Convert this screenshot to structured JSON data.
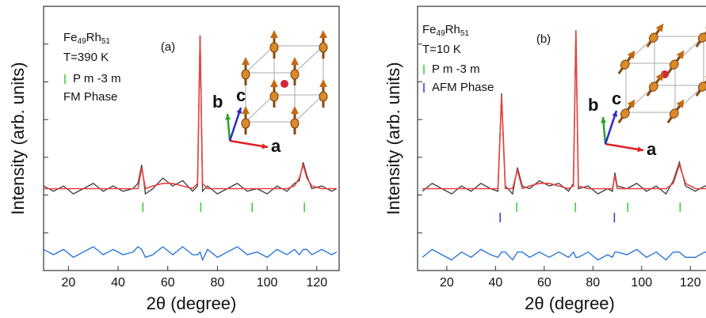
{
  "chart_data": [
    {
      "type": "line",
      "formula": [
        "Fe",
        "49",
        "Rh",
        "51"
      ],
      "temperature": "T=390 K",
      "panel_label": "(a)",
      "phase_note": "FM Phase",
      "axis_letters": [
        "a",
        "b",
        "c"
      ],
      "x_label": "2θ (degree)",
      "y_label": "Intensity (arb. units)",
      "xlim": [
        10,
        129
      ],
      "ylim": [
        0,
        100
      ],
      "xticks": [
        20,
        40,
        60,
        80,
        100,
        120
      ],
      "x": [
        10,
        14,
        18,
        22,
        26,
        30,
        34,
        38,
        42,
        46,
        48,
        49.5,
        51,
        54,
        58,
        62,
        66,
        70,
        72,
        73,
        74,
        76,
        80,
        84,
        88,
        92,
        96,
        100,
        104,
        108,
        111,
        113,
        114.5,
        116,
        118,
        122,
        126,
        128
      ],
      "series": [
        {
          "color": "#3a3a3a",
          "values": [
            32,
            30,
            32,
            29,
            31,
            33,
            30,
            32,
            30,
            31,
            33,
            40,
            29,
            31,
            35,
            32,
            34,
            30,
            32,
            89,
            30,
            32,
            29,
            31,
            33,
            30,
            31,
            29,
            32,
            30,
            33,
            34,
            41,
            36,
            31,
            32,
            30,
            31
          ]
        },
        {
          "color": "#e8413c",
          "values": [
            31,
            31,
            31,
            31,
            31,
            31,
            31,
            31,
            31,
            31,
            31,
            39,
            31,
            32,
            33,
            33,
            32,
            31,
            33,
            89,
            33,
            31,
            31,
            31,
            31,
            31,
            31,
            31,
            31,
            31,
            32,
            35,
            40,
            35,
            32,
            31,
            31,
            31
          ]
        },
        {
          "color": "#1f6fd6",
          "values": [
            8,
            6,
            8,
            5,
            7,
            9,
            6,
            8,
            6,
            7,
            9,
            8,
            5,
            6,
            9,
            6,
            9,
            6,
            6,
            7,
            4,
            8,
            5,
            7,
            9,
            6,
            7,
            5,
            8,
            6,
            8,
            6,
            8,
            8,
            6,
            8,
            6,
            7
          ]
        }
      ],
      "phases": [
        {
          "name": "P m -3 m",
          "color": "#33cc33",
          "positions": [
            50,
            73.3,
            94,
            115
          ]
        }
      ]
    },
    {
      "type": "line",
      "formula": [
        "Fe",
        "49",
        "Rh",
        "51"
      ],
      "temperature": "T=10 K",
      "panel_label": "(b)",
      "axis_letters": [
        "a",
        "b",
        "c"
      ],
      "x_label": "2θ (degree)",
      "y_label": "Intensity (arb. units)",
      "xlim": [
        8,
        130
      ],
      "ylim": [
        0,
        100
      ],
      "xticks": [
        20,
        40,
        60,
        80,
        100,
        120
      ],
      "x": [
        10,
        14,
        18,
        22,
        26,
        30,
        34,
        38,
        41,
        42.5,
        44,
        47,
        49,
        51,
        54,
        58,
        62,
        66,
        70,
        72,
        73,
        74,
        78,
        82,
        86,
        88,
        89,
        90,
        94,
        98,
        102,
        106,
        110,
        113,
        115.5,
        118,
        122,
        126,
        129
      ],
      "series": [
        {
          "color": "#3a3a3a",
          "values": [
            30,
            33,
            31,
            29,
            32,
            30,
            33,
            31,
            30,
            67,
            32,
            29,
            39,
            32,
            31,
            34,
            32,
            33,
            30,
            33,
            90,
            31,
            32,
            29,
            31,
            30,
            37,
            32,
            31,
            33,
            30,
            32,
            29,
            34,
            41,
            32,
            30,
            32,
            31
          ]
        },
        {
          "color": "#e8413c",
          "values": [
            31,
            31,
            31,
            31,
            31,
            31,
            31,
            31,
            31,
            66,
            31,
            31,
            38,
            31,
            32,
            33,
            33,
            32,
            31,
            32,
            91,
            32,
            31,
            31,
            31,
            31,
            36,
            31,
            31,
            31,
            31,
            31,
            31,
            33,
            40,
            33,
            31,
            31,
            31
          ]
        },
        {
          "color": "#1f6fd6",
          "values": [
            5,
            8,
            6,
            4,
            7,
            5,
            8,
            6,
            5,
            7,
            7,
            4,
            7,
            7,
            5,
            7,
            5,
            7,
            5,
            7,
            5,
            5,
            7,
            4,
            6,
            5,
            7,
            7,
            6,
            8,
            5,
            7,
            4,
            7,
            7,
            5,
            5,
            7,
            6
          ]
        }
      ],
      "phases": [
        {
          "name": "P m -3 m",
          "color": "#33cc33",
          "positions": [
            48.7,
            72.8,
            94.3,
            115.8
          ]
        },
        {
          "name": "AFM Phase",
          "color": "#3333cc",
          "positions": [
            41.9,
            88.8
          ]
        }
      ]
    }
  ]
}
